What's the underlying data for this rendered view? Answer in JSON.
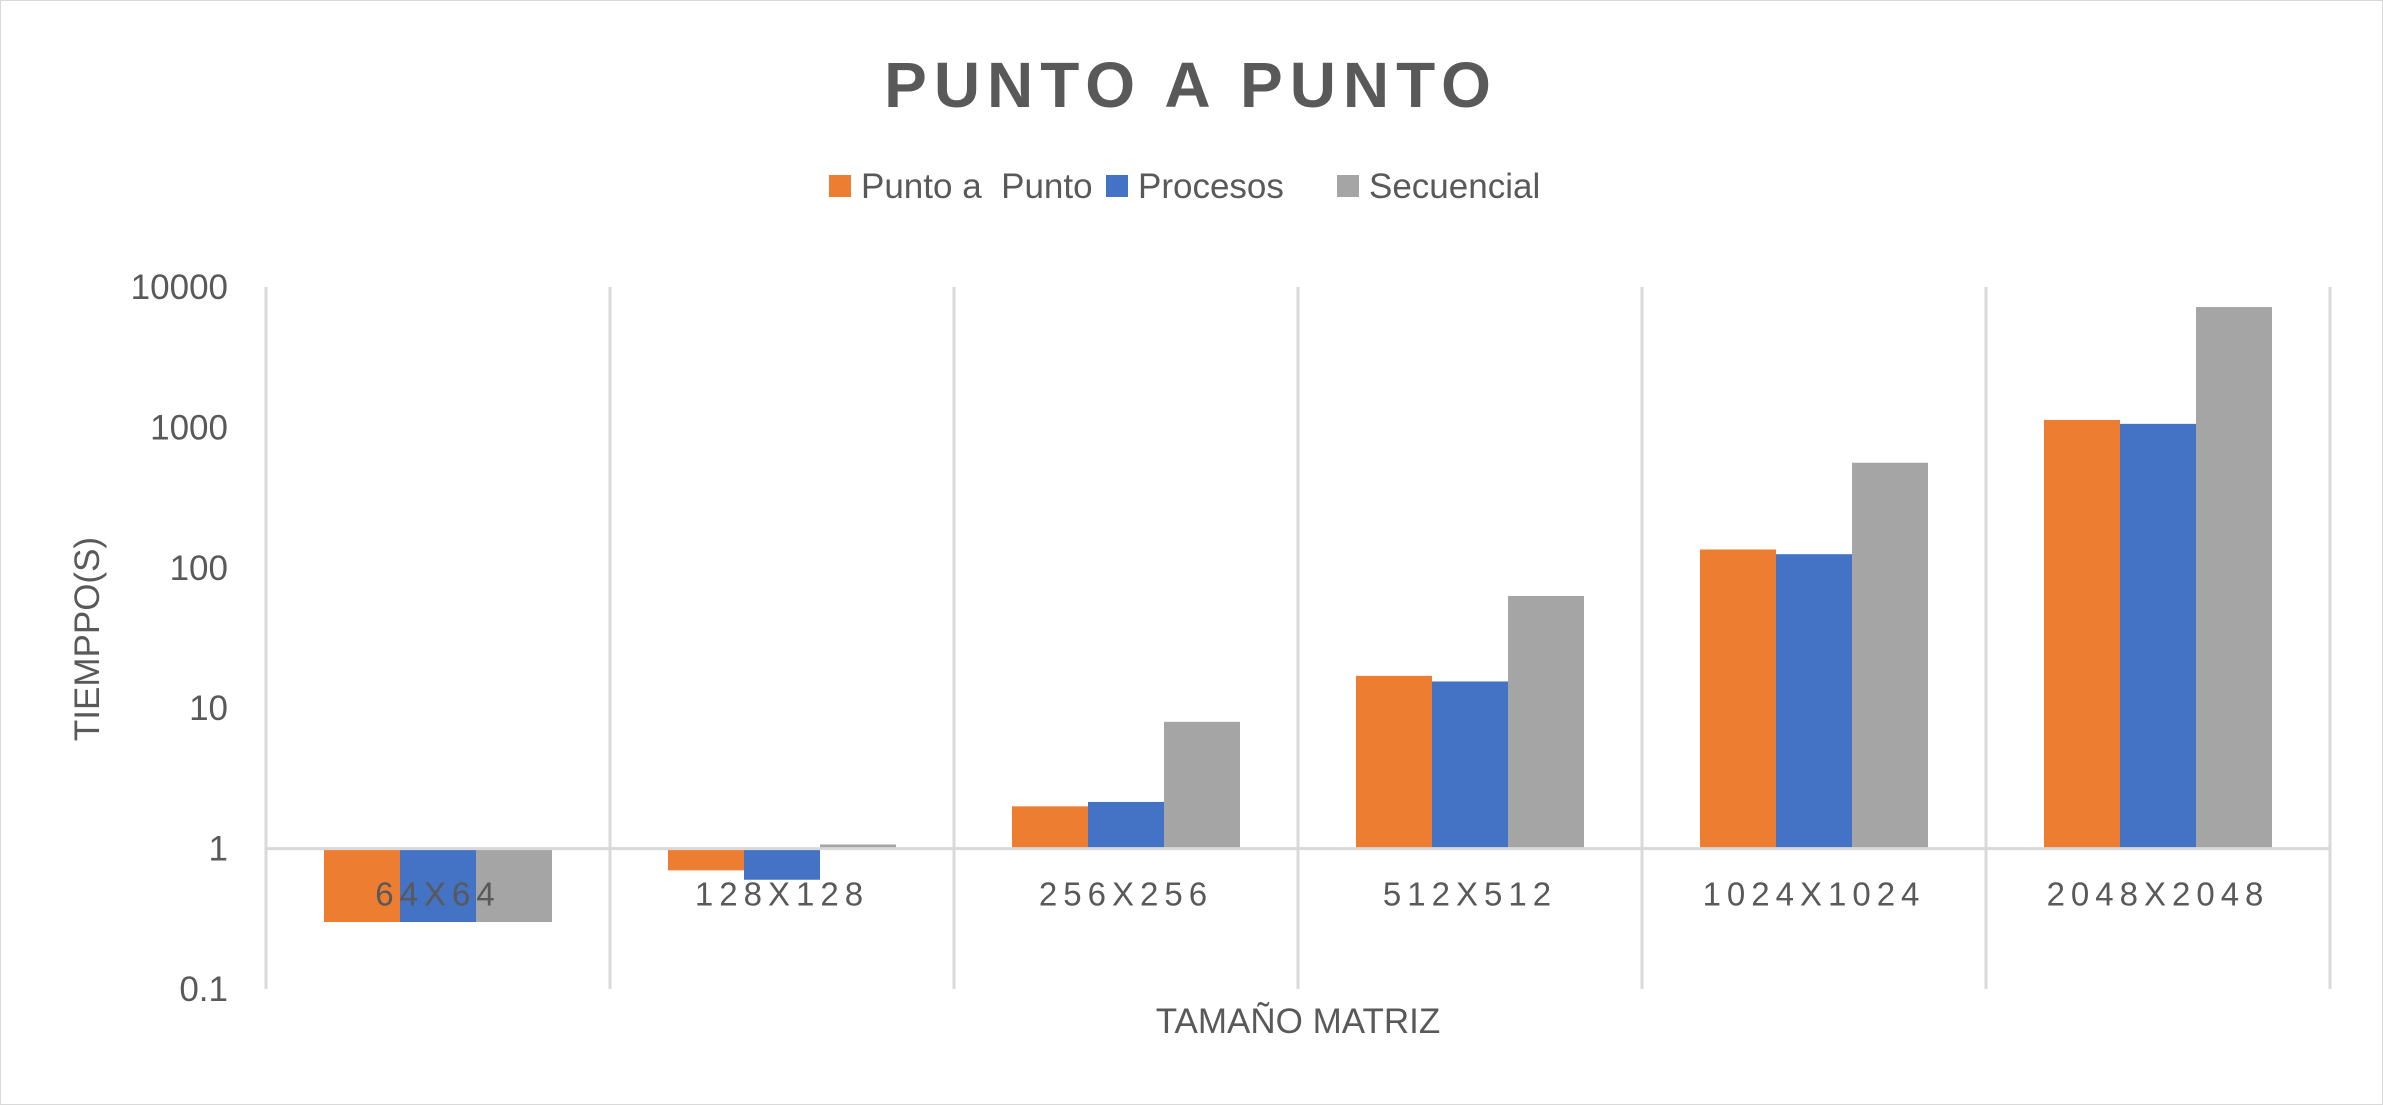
{
  "chart_data": {
    "type": "bar",
    "title": "PUNTO A PUNTO",
    "xlabel": "TAMAÑO MATRIZ",
    "ylabel": "TIEMPPO(S)",
    "yscale": "log",
    "ylim": [
      0.1,
      10000
    ],
    "yticks": [
      "0.1",
      "1",
      "10",
      "100",
      "1000",
      "10000"
    ],
    "bar_baseline": 1,
    "grid": "vertical lines between categories",
    "legend_position": "top",
    "categories": [
      "64X64",
      "128X128",
      "256X256",
      "512X512",
      "1024X1024",
      "2048X2048"
    ],
    "series": [
      {
        "name": "Punto a  Punto",
        "color": "#ED7D31",
        "values": [
          0.3,
          0.7,
          2.0,
          17,
          135,
          1130
        ]
      },
      {
        "name": "Procesos",
        "color": "#4472C4",
        "values": [
          0.3,
          0.6,
          2.15,
          15.5,
          125,
          1060
        ]
      },
      {
        "name": "Secuencial",
        "color": "#A5A5A5",
        "values": [
          0.3,
          1.07,
          8.0,
          63,
          560,
          7200
        ]
      }
    ]
  }
}
